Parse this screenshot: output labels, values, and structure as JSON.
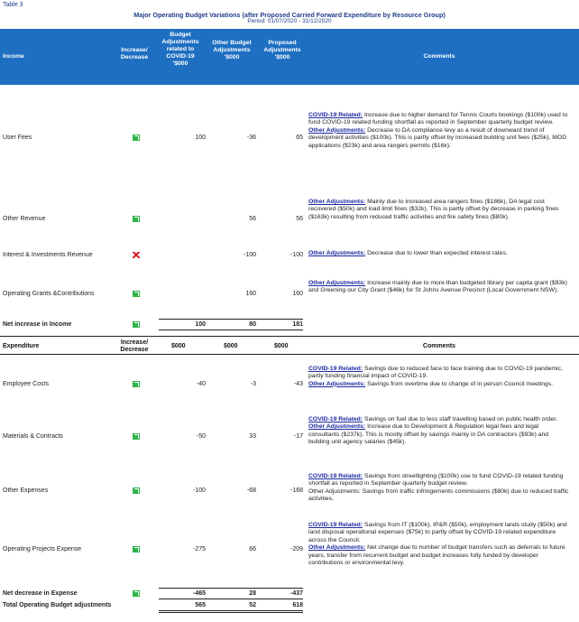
{
  "table_label": "Table 3",
  "title": "Major Operating Budget Variations (after Proposed Carried Forward Expenditure by Resource Group)",
  "period": "Period: 01/07/2020 - 31/12/2020",
  "header": {
    "income": "Income",
    "increase_decrease": "Increase/ Decrease",
    "budget_adj": "Budget Adjustments related to COVID-19 '$000",
    "other_budget_adj": "Other Budget Adjustments '$000",
    "proposed_adj": "Proposed Adjustments '$000",
    "comments": "Comments"
  },
  "income_rows": [
    {
      "label": "User Fees",
      "dir": "up",
      "covid": "100",
      "other": "-36",
      "proposed": "65",
      "comments": [
        {
          "key": "COVID-19 Related:",
          "text": " Increase due to higher demand for Tennis Courts bookings ($100k) used to fund COVID-19 related funding shortfall as reported in September quarterly budget review."
        },
        {
          "key": "Other Adjustments:",
          "text": " Decrease to DA compliance levy as a result of downward trend of development activities ($100k). This is partly offset by increased building unit fees ($25k), MOD applications ($23k) and area rangers permits ($16k)."
        }
      ]
    },
    {
      "label": "Other Revenue",
      "dir": "up",
      "covid": "",
      "other": "56",
      "proposed": "56",
      "comments": [
        {
          "key": "Other Adjustments:",
          "text": " Mainly due to increased area rangers fines ($186k), DA legal cost recovered ($50k) and load limit fines ($32k). This is partly offset by decrease in parking fines ($163k) resulting from reduced traffic activities and fire safety fines ($80k)."
        }
      ]
    },
    {
      "label": "Interest & Investments Revenue",
      "dir": "down",
      "covid": "",
      "other": "-100",
      "proposed": "-100",
      "comments": [
        {
          "key": "Other Adjustments:",
          "text": " Decrease due to lower than expected interest rates."
        }
      ]
    },
    {
      "label": "Operating Grants &Contributions",
      "dir": "up",
      "covid": "",
      "other": "160",
      "proposed": "160",
      "comments": [
        {
          "key": "Other Adjustments:",
          "text": " Increase mainly due to more than budgeted library per capita grant ($93k) and Greening our City Grant ($46k) for St Johns Avenue Precinct (Local Government NSW)."
        }
      ]
    }
  ],
  "income_total": {
    "label": "Net increase in Income",
    "covid": "100",
    "other": "80",
    "proposed": "181"
  },
  "exp_header": {
    "expenditure": "Expenditure",
    "increase_decrease": "Increase/ Decrease",
    "c1": "$000",
    "c2": "$000",
    "c3": "$000",
    "comments": "Comments"
  },
  "exp_rows": [
    {
      "label": "Employee Costs",
      "dir": "up",
      "covid": "-40",
      "other": "-3",
      "proposed": "-43",
      "comments": [
        {
          "key": "COVID-19 Related:",
          "text": " Savings due to reduced face to face training due to COVID-19 pandemic, partly funding financial impact of COVID-19."
        },
        {
          "key": "Other Adjustments:",
          "text": " Savings from overtime due to change of in person Council meetings."
        }
      ]
    },
    {
      "label": "Materials & Contracts",
      "dir": "up",
      "covid": "-50",
      "other": "33",
      "proposed": "-17",
      "comments": [
        {
          "key": "COVID-19 Related:",
          "text": " Savings on fuel due to less staff travelling based on public health order."
        },
        {
          "key": "Other Adjustments:",
          "text": " Increase due to Development & Regulation legal fees and legal consultants ($237k). This is mostly offset by savings mainly in DA contractors ($93k) and building unit agency salaries ($45k)."
        }
      ]
    },
    {
      "label": "Other Expenses",
      "dir": "up",
      "covid": "-100",
      "other": "-68",
      "proposed": "-168",
      "comments": [
        {
          "key": "COVID-19 Related:",
          "text": " Savings from streetlighting ($100k) use to fund COVID-19 related funding shortfall as reported in September quarterly budget review."
        },
        {
          "key": "",
          "text": "Other Adjustments: Savings from traffic infringements commissions ($80k) due to reduced traffic activities."
        }
      ]
    },
    {
      "label": "Operating Projects Expense",
      "dir": "up",
      "covid": "-275",
      "other": "66",
      "proposed": "-209",
      "comments": [
        {
          "key": "COVID-19 Related:",
          "text": " Savings from IT ($100k), IP&R ($50k), employment lands study ($50k) and land disposal operational expenses ($75k) to partly offset by COVID-19 related expenditure across the Council."
        },
        {
          "key": "Other Adjustments:",
          "text": " Net change due to number of budget transfers such as deferrals to future years, transfer from recurrent budget and budget increases fully funded by developer contributions or environmental levy."
        }
      ]
    }
  ],
  "exp_total": {
    "label": "Net decrease in Expense",
    "covid": "-465",
    "other": "28",
    "proposed": "-437"
  },
  "grand_total": {
    "label": "Total Operating Budget adjustments",
    "covid": "565",
    "other": "52",
    "proposed": "618"
  },
  "colors": {
    "header_bg": "#1e6fc2",
    "up": "#2fb34a",
    "down": "#d3202a",
    "key_text": "#1a2aa0"
  }
}
